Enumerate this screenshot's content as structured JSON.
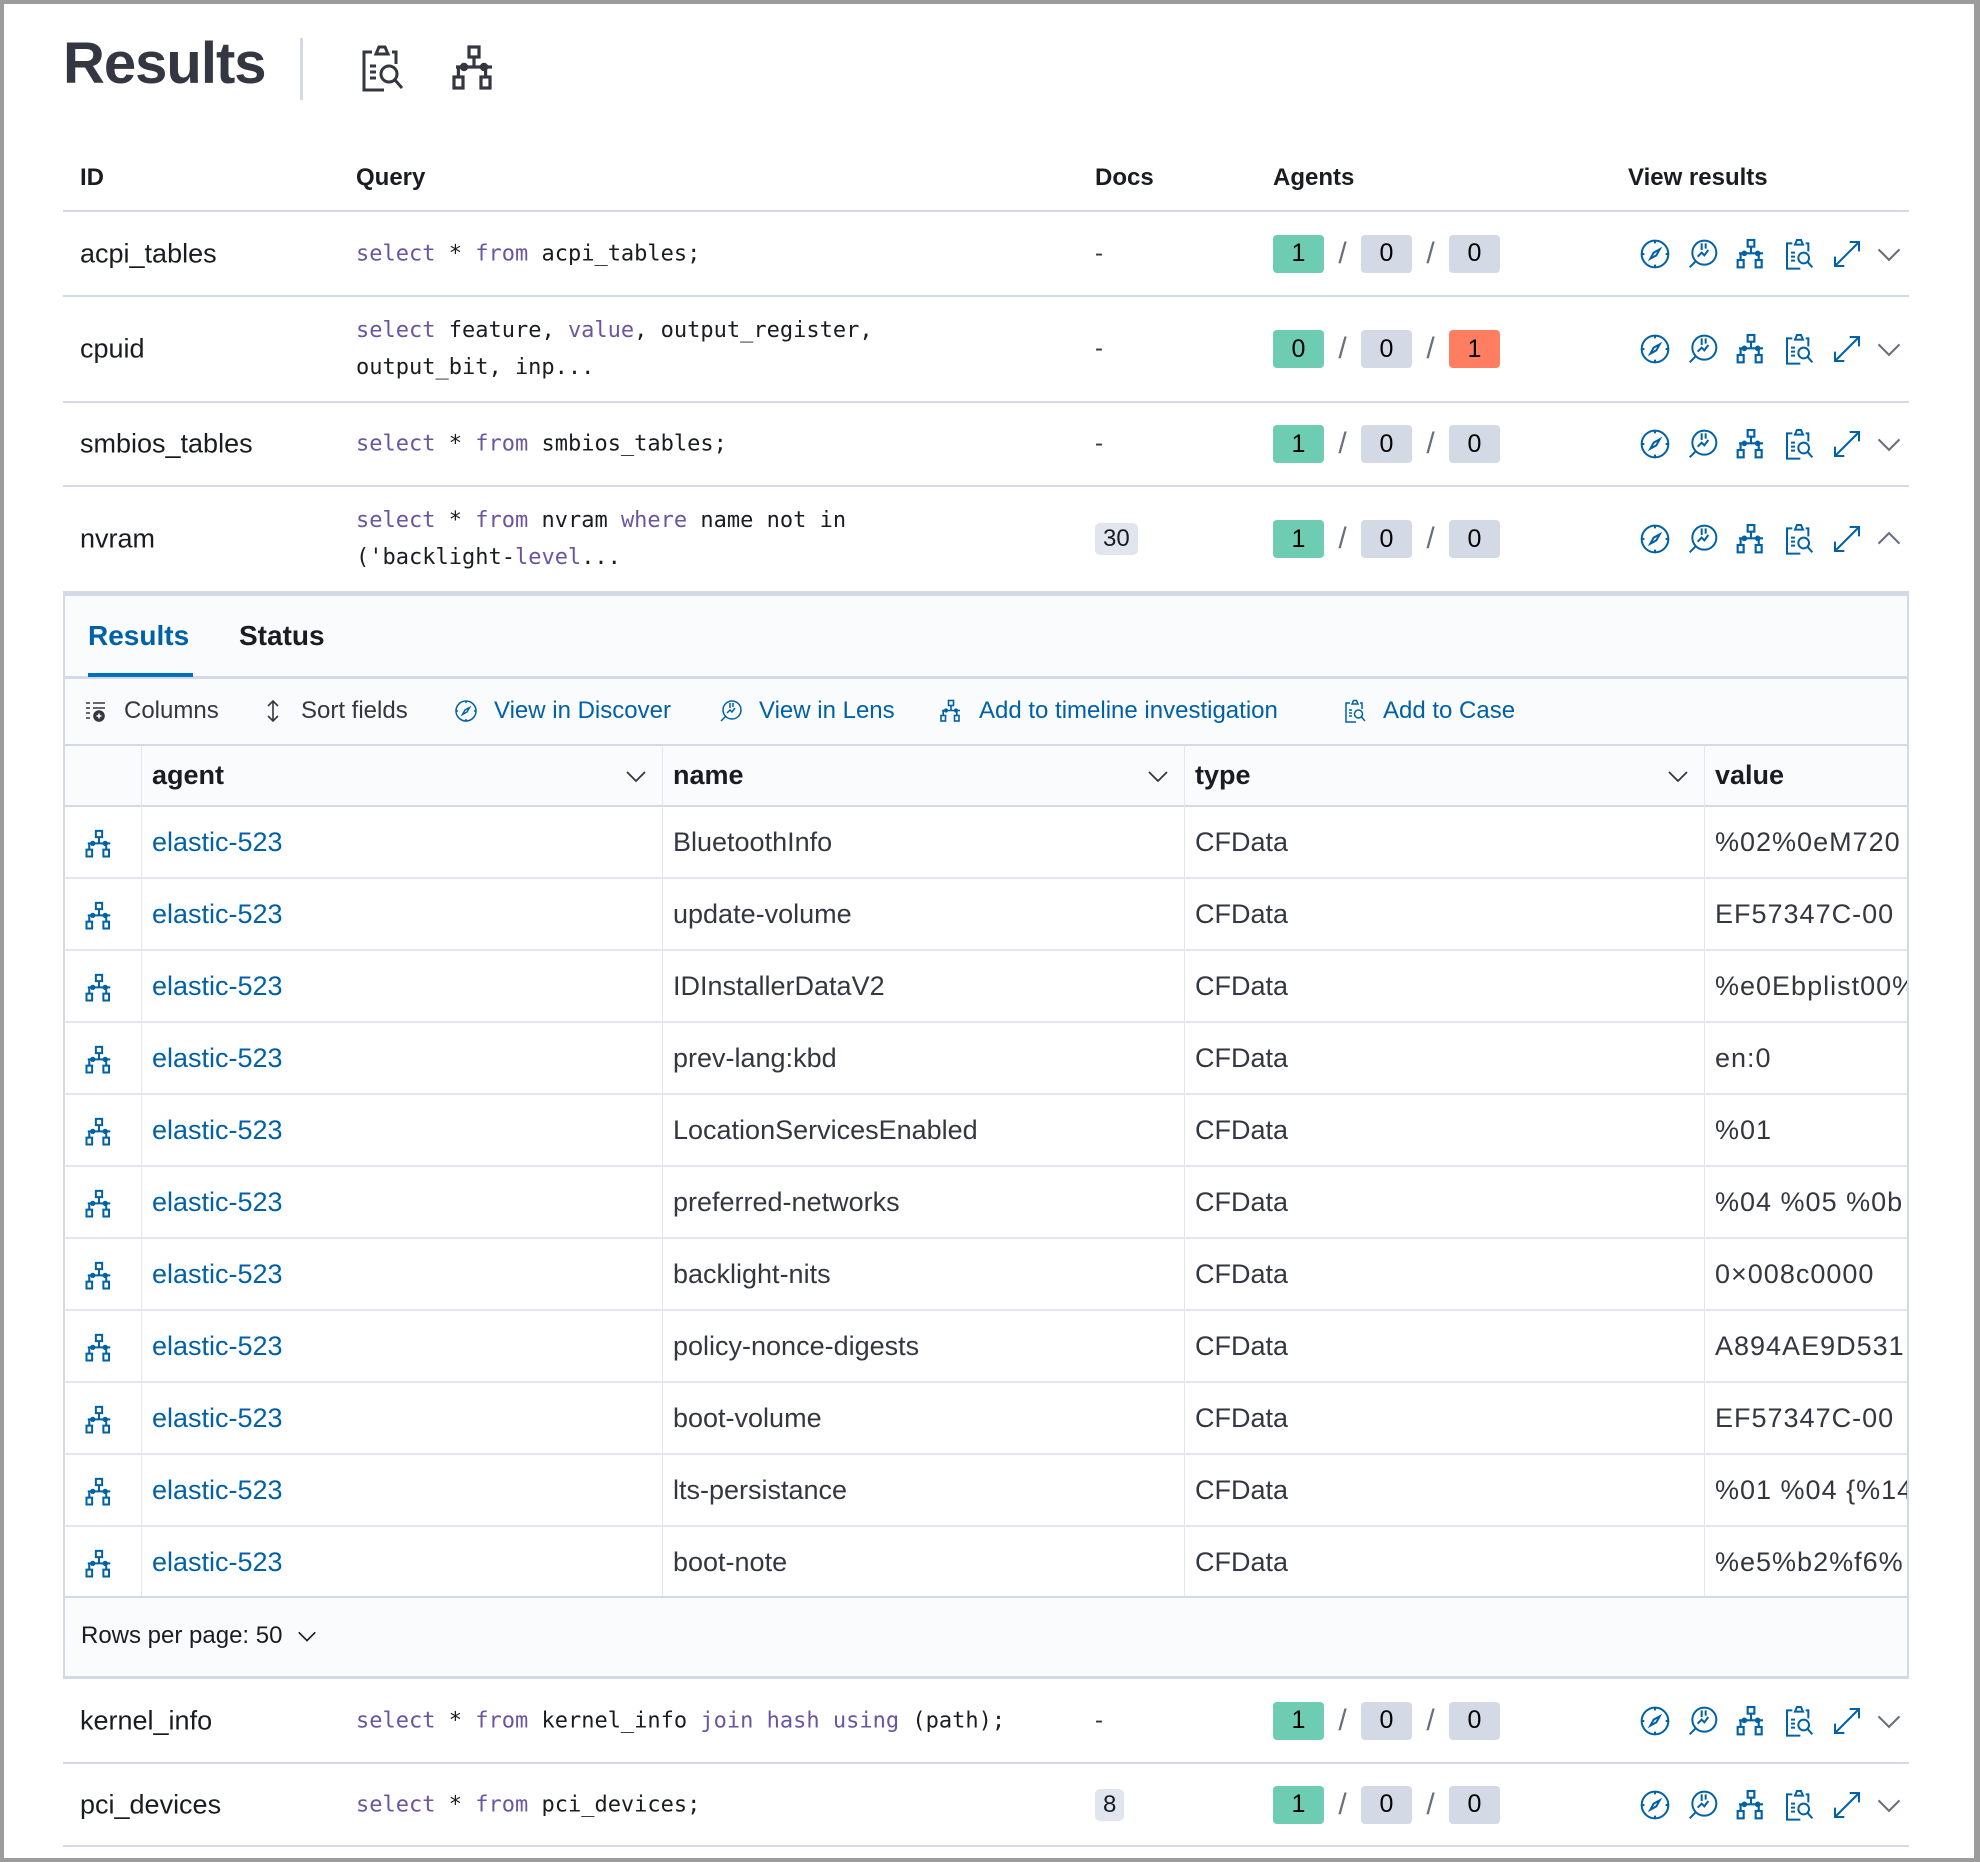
{
  "header": {
    "title": "Results",
    "icons": [
      "case-icon",
      "timeline-icon"
    ]
  },
  "table": {
    "columns": {
      "id": "ID",
      "query": "Query",
      "docs": "Docs",
      "agents": "Agents",
      "view_results": "View results"
    },
    "rows": [
      {
        "id": "acpi_tables",
        "query_lines": [
          "select * from acpi_tables;"
        ],
        "docs": "-",
        "agents": {
          "successful": "1",
          "pending": "0",
          "failed": "0"
        },
        "expanded": false
      },
      {
        "id": "cpuid",
        "query_lines": [
          "select feature, value, output_register,",
          "output_bit, inp..."
        ],
        "docs": "-",
        "agents": {
          "successful": "0",
          "pending": "0",
          "failed": "1"
        },
        "expanded": false
      },
      {
        "id": "smbios_tables",
        "query_lines": [
          "select * from smbios_tables;"
        ],
        "docs": "-",
        "agents": {
          "successful": "1",
          "pending": "0",
          "failed": "0"
        },
        "expanded": false
      },
      {
        "id": "nvram",
        "query_lines": [
          "select * from nvram where name not in",
          "('backlight-level..."
        ],
        "docs": "30",
        "agents": {
          "successful": "1",
          "pending": "0",
          "failed": "0"
        },
        "expanded": true
      },
      {
        "id": "kernel_info",
        "query_lines": [
          "select * from kernel_info join hash using (path);"
        ],
        "docs": "-",
        "agents": {
          "successful": "1",
          "pending": "0",
          "failed": "0"
        },
        "expanded": false
      },
      {
        "id": "pci_devices",
        "query_lines": [
          "select * from pci_devices;"
        ],
        "docs": "8",
        "agents": {
          "successful": "1",
          "pending": "0",
          "failed": "0"
        },
        "expanded": false
      }
    ],
    "view_icons": [
      "discover-icon",
      "lens-icon",
      "timeline-icon",
      "case-icon",
      "expand-icon"
    ]
  },
  "details": {
    "tabs": [
      {
        "label": "Results",
        "active": true
      },
      {
        "label": "Status",
        "active": false
      }
    ],
    "toolbar": [
      {
        "label": "Columns",
        "icon": "columns-icon",
        "link": false
      },
      {
        "label": "Sort fields",
        "icon": "sort-icon",
        "link": false
      },
      {
        "label": "View in Discover",
        "icon": "discover-icon",
        "link": true
      },
      {
        "label": "View in Lens",
        "icon": "lens-icon",
        "link": true
      },
      {
        "label": "Add to timeline investigation",
        "icon": "timeline-icon",
        "link": true
      },
      {
        "label": "Add to Case",
        "icon": "case-icon",
        "link": true
      }
    ],
    "grid": {
      "columns": [
        "agent",
        "name",
        "type",
        "value"
      ],
      "rows": [
        {
          "agent": "elastic-523",
          "name": "BluetoothInfo",
          "type": "CFData",
          "value": "%02%0eM720"
        },
        {
          "agent": "elastic-523",
          "name": "update-volume",
          "type": "CFData",
          "value": "EF57347C-00"
        },
        {
          "agent": "elastic-523",
          "name": "IDInstallerDataV2",
          "type": "CFData",
          "value": "%e0Ebplist00%"
        },
        {
          "agent": "elastic-523",
          "name": "prev-lang:kbd",
          "type": "CFData",
          "value": "en:0"
        },
        {
          "agent": "elastic-523",
          "name": "LocationServicesEnabled",
          "type": "CFData",
          "value": "%01"
        },
        {
          "agent": "elastic-523",
          "name": "preferred-networks",
          "type": "CFData",
          "value": "%04 %05 %0b"
        },
        {
          "agent": "elastic-523",
          "name": "backlight-nits",
          "type": "CFData",
          "value": "0×008c0000"
        },
        {
          "agent": "elastic-523",
          "name": "policy-nonce-digests",
          "type": "CFData",
          "value": "A894AE9D531"
        },
        {
          "agent": "elastic-523",
          "name": "boot-volume",
          "type": "CFData",
          "value": "EF57347C-00"
        },
        {
          "agent": "elastic-523",
          "name": "lts-persistance",
          "type": "CFData",
          "value": "%01 %04 {%14"
        },
        {
          "agent": "elastic-523",
          "name": "boot-note",
          "type": "CFData",
          "value": "%e5%b2%f6%"
        }
      ]
    },
    "rows_per_page": "Rows per page: 50"
  },
  "colors": {
    "successful": "#6dccb1",
    "neutral": "#d3dae6",
    "failed": "#ff7e62",
    "link": "#0061a6",
    "keyword": "#6b55a0"
  }
}
